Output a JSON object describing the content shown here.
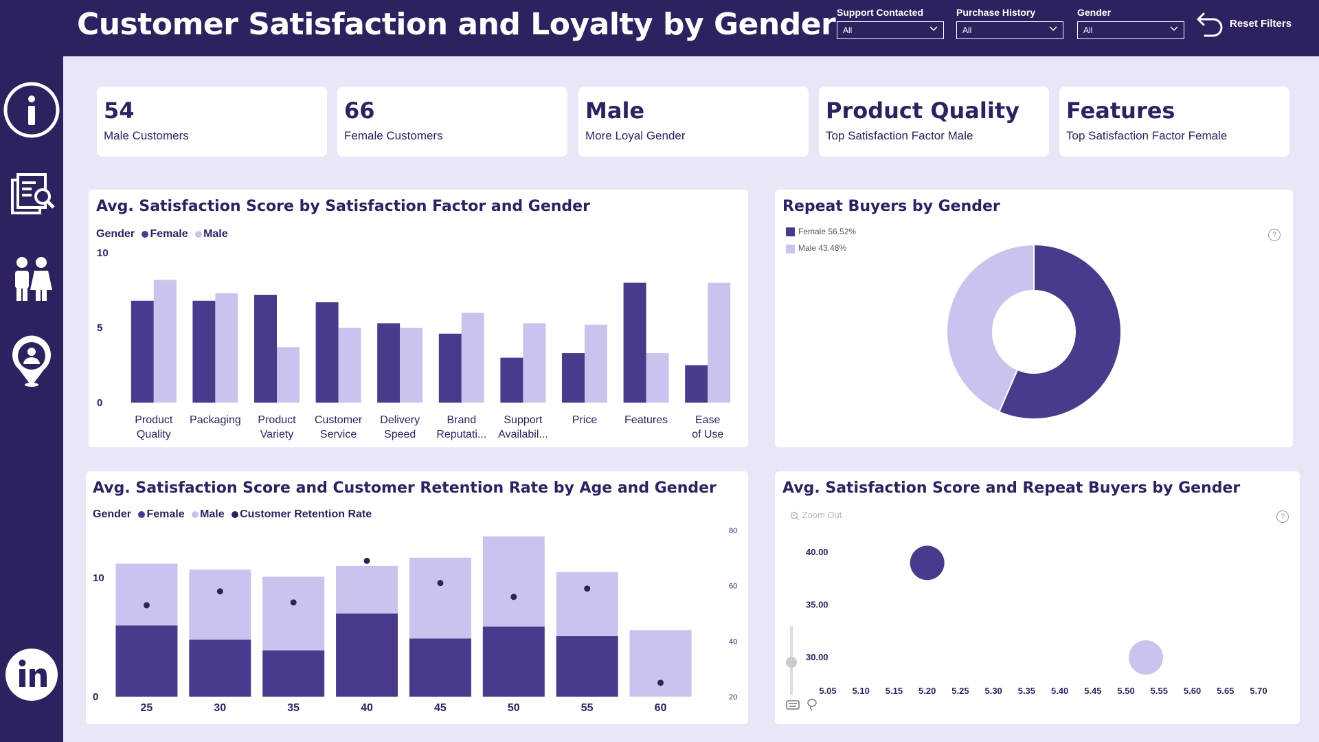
{
  "header": {
    "title": "Customer Satisfaction and Loyalty by Gender",
    "filters": [
      {
        "label": "Support Contacted",
        "value": "All"
      },
      {
        "label": "Purchase History",
        "value": "All"
      },
      {
        "label": "Gender",
        "value": "All"
      }
    ],
    "reset_label": "Reset Filters"
  },
  "sidebar": {
    "items": [
      "info-icon",
      "report-search-icon",
      "people-icon",
      "location-person-icon",
      "linkedin-icon"
    ]
  },
  "kpis": [
    {
      "value": "54",
      "caption": "Male Customers"
    },
    {
      "value": "66",
      "caption": "Female Customers"
    },
    {
      "value": "Male",
      "caption": "More Loyal Gender"
    },
    {
      "value": "Product Quality",
      "caption": "Top Satisfaction Factor Male"
    },
    {
      "value": "Features",
      "caption": "Top Satisfaction Factor Female"
    }
  ],
  "colors": {
    "female": "#4a3a8c",
    "male": "#cbc3ed",
    "retention": "#2e2160"
  },
  "bar_chart": {
    "title": "Avg. Satisfaction Score by Satisfaction Factor and Gender",
    "legend_title": "Gender",
    "legend": [
      "Female",
      "Male"
    ]
  },
  "donut_chart": {
    "title": "Repeat Buyers by Gender",
    "legend": [
      "Female 56.52%",
      "Male 43.48%"
    ]
  },
  "combo_chart": {
    "title": "Avg. Satisfaction Score and Customer Retention Rate by Age and Gender",
    "legend_title": "Gender",
    "legend": [
      "Female",
      "Male",
      "Customer Retention Rate"
    ]
  },
  "bubble_chart": {
    "title": "Avg. Satisfaction Score and Repeat Buyers by Gender",
    "zoom_out": "Zoom Out"
  },
  "chart_data": [
    {
      "type": "bar",
      "title": "Avg. Satisfaction Score by Satisfaction Factor and Gender",
      "categories": [
        "Product Quality",
        "Packaging",
        "Product Variety",
        "Customer Service",
        "Delivery Speed",
        "Brand Reputati...",
        "Support Availabil...",
        "Price",
        "Features",
        "Ease of Use"
      ],
      "series": [
        {
          "name": "Female",
          "values": [
            6.8,
            6.8,
            7.2,
            6.7,
            5.3,
            4.6,
            3.0,
            3.3,
            8.0,
            2.5
          ]
        },
        {
          "name": "Male",
          "values": [
            8.2,
            7.3,
            3.7,
            5.0,
            5.0,
            6.0,
            5.3,
            5.2,
            3.3,
            8.0
          ]
        }
      ],
      "yticks": [
        0,
        5,
        10
      ],
      "ylim": [
        0,
        10
      ],
      "legend_title": "Gender"
    },
    {
      "type": "pie",
      "title": "Repeat Buyers by Gender",
      "categories": [
        "Female",
        "Male"
      ],
      "values": [
        56.52,
        43.48
      ],
      "legend": "top-left"
    },
    {
      "type": "bar",
      "title": "Avg. Satisfaction Score and Customer Retention Rate by Age and Gender",
      "categories": [
        "25",
        "30",
        "35",
        "40",
        "45",
        "50",
        "55",
        "60"
      ],
      "series": [
        {
          "name": "Female",
          "values": [
            6.0,
            4.8,
            3.9,
            7.0,
            4.9,
            5.9,
            5.1,
            0
          ]
        },
        {
          "name": "Male",
          "values": [
            5.2,
            5.9,
            6.2,
            4.0,
            6.8,
            7.6,
            5.4,
            5.6
          ]
        },
        {
          "name": "Customer Retention Rate",
          "values": [
            53,
            58,
            54,
            69,
            61,
            56,
            59,
            25
          ]
        }
      ],
      "yticks": [
        0,
        10
      ],
      "ylim": [
        0,
        14
      ],
      "y2ticks": [
        20,
        40,
        60,
        80
      ],
      "y2lim": [
        20,
        80
      ],
      "stacked": true
    },
    {
      "type": "scatter",
      "title": "Avg. Satisfaction Score and Repeat Buyers by Gender",
      "points": [
        {
          "category": "Female",
          "x": 5.2,
          "y": 39.0
        },
        {
          "category": "Male",
          "x": 5.53,
          "y": 30.0
        }
      ],
      "xticks": [
        "5.05",
        "5.10",
        "5.15",
        "5.20",
        "5.25",
        "5.30",
        "5.35",
        "5.40",
        "5.45",
        "5.50",
        "5.55",
        "5.60",
        "5.65",
        "5.70"
      ],
      "yticks": [
        "30.00",
        "35.00",
        "40.00"
      ],
      "xlim": [
        5.05,
        5.7
      ],
      "ylim": [
        30,
        40
      ]
    }
  ]
}
